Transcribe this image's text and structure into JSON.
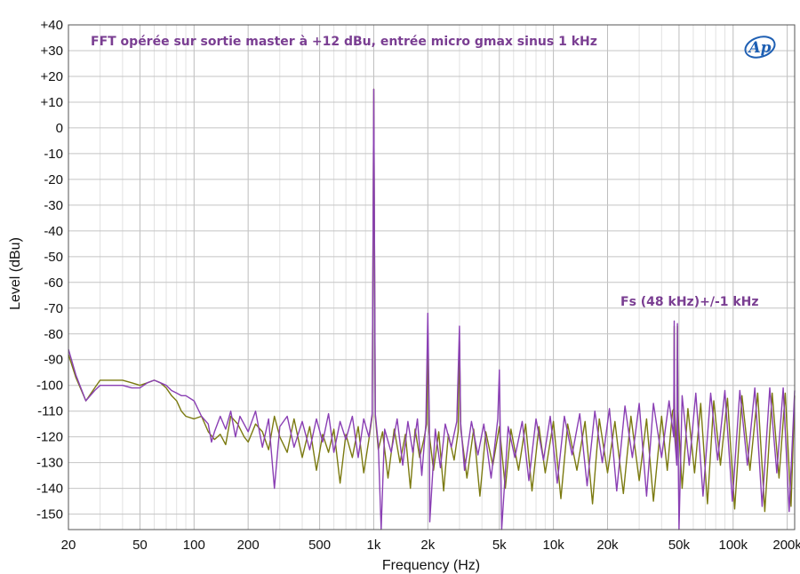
{
  "chart_data": {
    "type": "line",
    "title": "",
    "xlabel": "Frequency (Hz)",
    "ylabel": "Level (dBu)",
    "x_scale": "log",
    "xlim": [
      20,
      220000
    ],
    "ylim": [
      -156,
      40
    ],
    "x_ticks": [
      {
        "value": 20,
        "label": "20"
      },
      {
        "value": 50,
        "label": "50"
      },
      {
        "value": 100,
        "label": "100"
      },
      {
        "value": 200,
        "label": "200"
      },
      {
        "value": 500,
        "label": "500"
      },
      {
        "value": 1000,
        "label": "1k"
      },
      {
        "value": 2000,
        "label": "2k"
      },
      {
        "value": 5000,
        "label": "5k"
      },
      {
        "value": 10000,
        "label": "10k"
      },
      {
        "value": 20000,
        "label": "20k"
      },
      {
        "value": 50000,
        "label": "50k"
      },
      {
        "value": 100000,
        "label": "100k"
      },
      {
        "value": 200000,
        "label": "200k"
      }
    ],
    "y_ticks": [
      {
        "value": 40,
        "label": "+40"
      },
      {
        "value": 30,
        "label": "+30"
      },
      {
        "value": 20,
        "label": "+20"
      },
      {
        "value": 10,
        "label": "+10"
      },
      {
        "value": 0,
        "label": "0"
      },
      {
        "value": -10,
        "label": "-10"
      },
      {
        "value": -20,
        "label": "-20"
      },
      {
        "value": -30,
        "label": "-30"
      },
      {
        "value": -40,
        "label": "-40"
      },
      {
        "value": -50,
        "label": "-50"
      },
      {
        "value": -60,
        "label": "-60"
      },
      {
        "value": -70,
        "label": "-70"
      },
      {
        "value": -80,
        "label": "-80"
      },
      {
        "value": -90,
        "label": "-90"
      },
      {
        "value": -100,
        "label": "-100"
      },
      {
        "value": -110,
        "label": "-110"
      },
      {
        "value": -120,
        "label": "-120"
      },
      {
        "value": -130,
        "label": "-130"
      },
      {
        "value": -140,
        "label": "-140"
      },
      {
        "value": -150,
        "label": "-150"
      }
    ],
    "grid": true,
    "series": [
      {
        "color": "#7b7a10",
        "points": [
          [
            20,
            -88
          ],
          [
            22,
            -97
          ],
          [
            25,
            -106
          ],
          [
            28,
            -101
          ],
          [
            30,
            -98
          ],
          [
            35,
            -98
          ],
          [
            40,
            -98
          ],
          [
            45,
            -99
          ],
          [
            50,
            -100
          ],
          [
            55,
            -99
          ],
          [
            60,
            -98
          ],
          [
            65,
            -99
          ],
          [
            70,
            -101
          ],
          [
            75,
            -104
          ],
          [
            80,
            -106
          ],
          [
            85,
            -110
          ],
          [
            90,
            -112
          ],
          [
            100,
            -113
          ],
          [
            110,
            -112
          ],
          [
            120,
            -118
          ],
          [
            130,
            -121
          ],
          [
            140,
            -119
          ],
          [
            150,
            -123
          ],
          [
            160,
            -112
          ],
          [
            175,
            -115
          ],
          [
            190,
            -120
          ],
          [
            200,
            -122
          ],
          [
            220,
            -115
          ],
          [
            240,
            -118
          ],
          [
            260,
            -125
          ],
          [
            280,
            -112
          ],
          [
            300,
            -120
          ],
          [
            330,
            -126
          ],
          [
            360,
            -113
          ],
          [
            400,
            -128
          ],
          [
            440,
            -116
          ],
          [
            480,
            -133
          ],
          [
            520,
            -119
          ],
          [
            560,
            -126
          ],
          [
            600,
            -117
          ],
          [
            650,
            -138
          ],
          [
            700,
            -119
          ],
          [
            760,
            -128
          ],
          [
            820,
            -116
          ],
          [
            880,
            -134
          ],
          [
            940,
            -121
          ],
          [
            980,
            -112
          ],
          [
            1000,
            15
          ],
          [
            1020,
            -112
          ],
          [
            1060,
            -125
          ],
          [
            1120,
            -118
          ],
          [
            1200,
            -136
          ],
          [
            1300,
            -117
          ],
          [
            1400,
            -130
          ],
          [
            1500,
            -119
          ],
          [
            1600,
            -140
          ],
          [
            1700,
            -117
          ],
          [
            1800,
            -128
          ],
          [
            1900,
            -121
          ],
          [
            1970,
            -115
          ],
          [
            2000,
            -78
          ],
          [
            2030,
            -118
          ],
          [
            2150,
            -133
          ],
          [
            2300,
            -118
          ],
          [
            2450,
            -141
          ],
          [
            2600,
            -119
          ],
          [
            2800,
            -129
          ],
          [
            2950,
            -118
          ],
          [
            3000,
            -83
          ],
          [
            3050,
            -117
          ],
          [
            3300,
            -136
          ],
          [
            3600,
            -117
          ],
          [
            3900,
            -143
          ],
          [
            4200,
            -118
          ],
          [
            4600,
            -131
          ],
          [
            5000,
            -116
          ],
          [
            5400,
            -140
          ],
          [
            5800,
            -117
          ],
          [
            6400,
            -133
          ],
          [
            7000,
            -115
          ],
          [
            7600,
            -141
          ],
          [
            8300,
            -116
          ],
          [
            9000,
            -134
          ],
          [
            10000,
            -114
          ],
          [
            11000,
            -144
          ],
          [
            12000,
            -115
          ],
          [
            13500,
            -133
          ],
          [
            15000,
            -114
          ],
          [
            16500,
            -146
          ],
          [
            18000,
            -113
          ],
          [
            20000,
            -134
          ],
          [
            22000,
            -114
          ],
          [
            24500,
            -142
          ],
          [
            27000,
            -112
          ],
          [
            30000,
            -137
          ],
          [
            33000,
            -113
          ],
          [
            36000,
            -145
          ],
          [
            40000,
            -112
          ],
          [
            43000,
            -133
          ],
          [
            46000,
            -110
          ],
          [
            46800,
            -109
          ],
          [
            47000,
            -77
          ],
          [
            47300,
            -110
          ],
          [
            48600,
            -128
          ],
          [
            49000,
            -77
          ],
          [
            49300,
            -110
          ],
          [
            52000,
            -140
          ],
          [
            56000,
            -109
          ],
          [
            61000,
            -134
          ],
          [
            66000,
            -107
          ],
          [
            72000,
            -146
          ],
          [
            78000,
            -106
          ],
          [
            85000,
            -131
          ],
          [
            93000,
            -105
          ],
          [
            102000,
            -148
          ],
          [
            112000,
            -104
          ],
          [
            124000,
            -133
          ],
          [
            137000,
            -103
          ],
          [
            150000,
            -149
          ],
          [
            165000,
            -103
          ],
          [
            180000,
            -136
          ],
          [
            195000,
            -103
          ],
          [
            210000,
            -147
          ],
          [
            220000,
            -104
          ]
        ]
      },
      {
        "color": "#8a3fb4",
        "points": [
          [
            20,
            -86
          ],
          [
            22,
            -96
          ],
          [
            25,
            -106
          ],
          [
            28,
            -102
          ],
          [
            30,
            -100
          ],
          [
            35,
            -100
          ],
          [
            40,
            -100
          ],
          [
            45,
            -101
          ],
          [
            50,
            -101
          ],
          [
            55,
            -99
          ],
          [
            60,
            -98
          ],
          [
            65,
            -99
          ],
          [
            70,
            -100
          ],
          [
            75,
            -102
          ],
          [
            80,
            -103
          ],
          [
            85,
            -104
          ],
          [
            90,
            -104
          ],
          [
            100,
            -106
          ],
          [
            110,
            -112
          ],
          [
            120,
            -115
          ],
          [
            125,
            -122
          ],
          [
            130,
            -118
          ],
          [
            140,
            -112
          ],
          [
            150,
            -117
          ],
          [
            160,
            -110
          ],
          [
            170,
            -120
          ],
          [
            180,
            -112
          ],
          [
            200,
            -118
          ],
          [
            220,
            -110
          ],
          [
            240,
            -124
          ],
          [
            260,
            -113
          ],
          [
            280,
            -140
          ],
          [
            300,
            -116
          ],
          [
            330,
            -112
          ],
          [
            360,
            -124
          ],
          [
            400,
            -114
          ],
          [
            440,
            -125
          ],
          [
            480,
            -113
          ],
          [
            520,
            -122
          ],
          [
            560,
            -111
          ],
          [
            600,
            -126
          ],
          [
            650,
            -114
          ],
          [
            700,
            -121
          ],
          [
            760,
            -112
          ],
          [
            820,
            -128
          ],
          [
            880,
            -113
          ],
          [
            940,
            -120
          ],
          [
            980,
            -111
          ],
          [
            1000,
            15
          ],
          [
            1020,
            -111
          ],
          [
            1060,
            -123
          ],
          [
            1100,
            -157
          ],
          [
            1150,
            -117
          ],
          [
            1250,
            -126
          ],
          [
            1350,
            -113
          ],
          [
            1450,
            -131
          ],
          [
            1550,
            -114
          ],
          [
            1650,
            -126
          ],
          [
            1750,
            -113
          ],
          [
            1850,
            -135
          ],
          [
            1950,
            -115
          ],
          [
            2000,
            -72
          ],
          [
            2040,
            -116
          ],
          [
            2050,
            -153
          ],
          [
            2200,
            -117
          ],
          [
            2350,
            -132
          ],
          [
            2500,
            -115
          ],
          [
            2700,
            -124
          ],
          [
            2900,
            -114
          ],
          [
            3000,
            -77
          ],
          [
            3040,
            -114
          ],
          [
            3200,
            -133
          ],
          [
            3500,
            -114
          ],
          [
            3800,
            -127
          ],
          [
            4100,
            -115
          ],
          [
            4500,
            -136
          ],
          [
            4900,
            -113
          ],
          [
            5000,
            -94
          ],
          [
            5150,
            -157
          ],
          [
            5600,
            -116
          ],
          [
            6100,
            -128
          ],
          [
            6700,
            -114
          ],
          [
            7300,
            -137
          ],
          [
            8000,
            -113
          ],
          [
            8800,
            -129
          ],
          [
            9600,
            -112
          ],
          [
            10500,
            -138
          ],
          [
            11500,
            -112
          ],
          [
            12700,
            -127
          ],
          [
            14000,
            -111
          ],
          [
            15400,
            -139
          ],
          [
            17000,
            -110
          ],
          [
            18700,
            -130
          ],
          [
            20500,
            -109
          ],
          [
            22500,
            -141
          ],
          [
            25000,
            -108
          ],
          [
            27500,
            -128
          ],
          [
            30000,
            -107
          ],
          [
            33000,
            -143
          ],
          [
            36000,
            -107
          ],
          [
            40000,
            -128
          ],
          [
            44000,
            -106
          ],
          [
            46700,
            -120
          ],
          [
            47000,
            -75
          ],
          [
            47300,
            -120
          ],
          [
            48600,
            -131
          ],
          [
            49000,
            -76
          ],
          [
            49300,
            -118
          ],
          [
            50000,
            -156
          ],
          [
            52000,
            -104
          ],
          [
            57000,
            -131
          ],
          [
            62000,
            -103
          ],
          [
            68000,
            -143
          ],
          [
            75000,
            -103
          ],
          [
            82000,
            -129
          ],
          [
            90000,
            -102
          ],
          [
            99000,
            -145
          ],
          [
            109000,
            -102
          ],
          [
            120000,
            -131
          ],
          [
            132000,
            -101
          ],
          [
            145000,
            -147
          ],
          [
            160000,
            -101
          ],
          [
            175000,
            -134
          ],
          [
            190000,
            -101
          ],
          [
            205000,
            -149
          ],
          [
            220000,
            -102
          ]
        ]
      }
    ],
    "annotations": [
      {
        "text": "FFT opérée sur sortie master à +12 dBu, entrée micro gmax sinus 1 kHz",
        "color": "#7a3e92"
      },
      {
        "text": "Fs (48 kHz)+/-1 kHz",
        "color": "#7a3e92",
        "x": 47000,
        "y": -69
      }
    ],
    "legend": "none"
  },
  "logo": {
    "text": "Ap",
    "color": "#1e5fb3"
  }
}
